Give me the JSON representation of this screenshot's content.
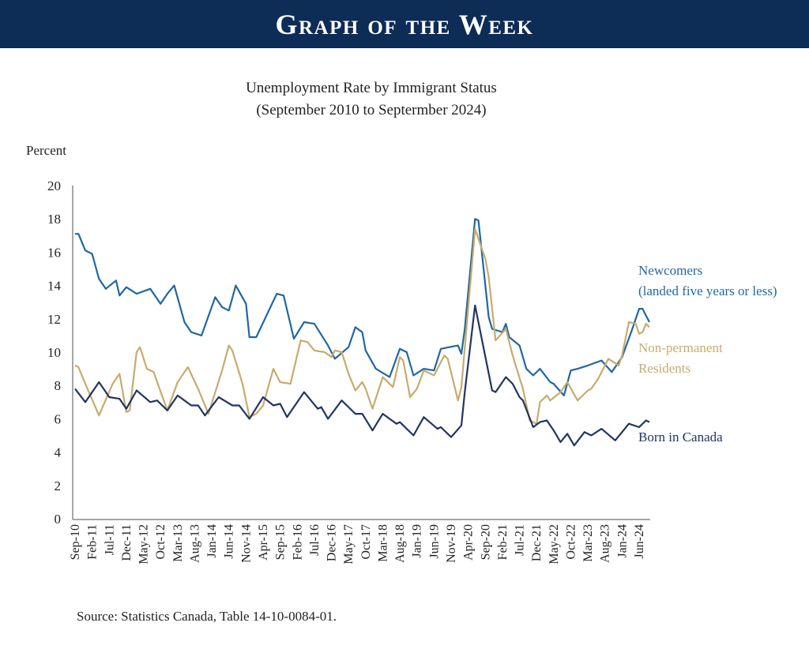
{
  "banner": {
    "title": "Graph of the Week"
  },
  "chart_data": {
    "type": "line",
    "title": "Unemployment Rate by Immigrant Status",
    "subtitle": "(September 2010 to Septermber 2024)",
    "ylabel": "Percent",
    "xlabel": "",
    "ylim": [
      0,
      20
    ],
    "yticks": [
      0,
      2,
      4,
      6,
      8,
      10,
      12,
      14,
      16,
      18,
      20
    ],
    "x_unit": "months since Sep-10",
    "xlim": [
      0,
      168
    ],
    "xtick_step_months": 5,
    "xtick_labels": [
      "Sep-10",
      "Feb-11",
      "Jul-11",
      "Dec-11",
      "May-12",
      "Oct-12",
      "Mar-13",
      "Aug-13",
      "Jan-14",
      "Jun-14",
      "Nov-14",
      "Apr-15",
      "Sep-15",
      "Feb-16",
      "Jul-16",
      "Dec-16",
      "May-17",
      "Oct-17",
      "Mar-18",
      "Aug-18",
      "Jan-19",
      "Jun-19",
      "Nov-19",
      "Apr-20",
      "Sep-20",
      "Feb-21",
      "Jul-21",
      "Dec-21",
      "May-22",
      "Oct-22",
      "Mar-23",
      "Aug-23",
      "Jan-24",
      "Jun-24"
    ],
    "grid": false,
    "series": [
      {
        "name": "Newcomers",
        "label_lines": [
          "Newcomers",
          "(landed five years or less)"
        ],
        "color": "#1f67a3",
        "points": [
          [
            0,
            17.1
          ],
          [
            1,
            17.1
          ],
          [
            3,
            16.1
          ],
          [
            5,
            15.9
          ],
          [
            7,
            14.4
          ],
          [
            9,
            13.8
          ],
          [
            12,
            14.3
          ],
          [
            13,
            13.4
          ],
          [
            15,
            13.9
          ],
          [
            18,
            13.5
          ],
          [
            22,
            13.8
          ],
          [
            25,
            12.9
          ],
          [
            27,
            13.5
          ],
          [
            29,
            14.0
          ],
          [
            32,
            11.8
          ],
          [
            34,
            11.2
          ],
          [
            37,
            11.0
          ],
          [
            41,
            13.3
          ],
          [
            43,
            12.7
          ],
          [
            45,
            12.5
          ],
          [
            47,
            14.0
          ],
          [
            50,
            12.9
          ],
          [
            51,
            10.9
          ],
          [
            53,
            10.9
          ],
          [
            56,
            12.2
          ],
          [
            59,
            13.5
          ],
          [
            61,
            13.4
          ],
          [
            64,
            10.8
          ],
          [
            67,
            11.8
          ],
          [
            70,
            11.7
          ],
          [
            74,
            10.4
          ],
          [
            76,
            9.6
          ],
          [
            80,
            10.3
          ],
          [
            82,
            11.5
          ],
          [
            84,
            11.2
          ],
          [
            85,
            10.1
          ],
          [
            88,
            9.0
          ],
          [
            92,
            8.5
          ],
          [
            95,
            10.2
          ],
          [
            97,
            10.0
          ],
          [
            99,
            8.6
          ],
          [
            102,
            9.0
          ],
          [
            105,
            8.9
          ],
          [
            107,
            10.2
          ],
          [
            112,
            10.4
          ],
          [
            113,
            9.9
          ],
          [
            114,
            11.4
          ],
          [
            117,
            18.0
          ],
          [
            118,
            17.9
          ],
          [
            121,
            12.1
          ],
          [
            122,
            11.4
          ],
          [
            125,
            11.2
          ],
          [
            126,
            11.7
          ],
          [
            127,
            10.9
          ],
          [
            130,
            10.4
          ],
          [
            132,
            9.0
          ],
          [
            134,
            8.6
          ],
          [
            136,
            9.0
          ],
          [
            139,
            8.2
          ],
          [
            140,
            8.1
          ],
          [
            143,
            7.4
          ],
          [
            145,
            8.9
          ],
          [
            147,
            9.0
          ],
          [
            150,
            9.2
          ],
          [
            154,
            9.5
          ],
          [
            157,
            8.8
          ],
          [
            160,
            9.7
          ],
          [
            163,
            11.4
          ],
          [
            165,
            12.6
          ],
          [
            166,
            12.6
          ],
          [
            168,
            11.8
          ]
        ]
      },
      {
        "name": "Non-permanent Residents",
        "label_lines": [
          "Non-permanent",
          "Residents"
        ],
        "color": "#c8ab6c",
        "points": [
          [
            0,
            9.2
          ],
          [
            1,
            9.1
          ],
          [
            3,
            8.1
          ],
          [
            7,
            6.2
          ],
          [
            11,
            8.1
          ],
          [
            13,
            8.7
          ],
          [
            15,
            6.4
          ],
          [
            16,
            6.5
          ],
          [
            18,
            10.0
          ],
          [
            19,
            10.3
          ],
          [
            21,
            9.0
          ],
          [
            23,
            8.8
          ],
          [
            27,
            6.5
          ],
          [
            30,
            8.2
          ],
          [
            33,
            9.1
          ],
          [
            36,
            7.8
          ],
          [
            39,
            6.3
          ],
          [
            43,
            8.9
          ],
          [
            45,
            10.4
          ],
          [
            46,
            10.1
          ],
          [
            49,
            8.1
          ],
          [
            51,
            6.1
          ],
          [
            53,
            6.3
          ],
          [
            55,
            6.8
          ],
          [
            58,
            9.0
          ],
          [
            60,
            8.2
          ],
          [
            63,
            8.1
          ],
          [
            66,
            10.7
          ],
          [
            68,
            10.6
          ],
          [
            70,
            10.1
          ],
          [
            73,
            10.0
          ],
          [
            75,
            9.7
          ],
          [
            76,
            10.1
          ],
          [
            78,
            10.0
          ],
          [
            80,
            8.7
          ],
          [
            82,
            7.7
          ],
          [
            84,
            8.2
          ],
          [
            85,
            7.8
          ],
          [
            87,
            6.6
          ],
          [
            90,
            8.5
          ],
          [
            93,
            7.9
          ],
          [
            95,
            9.7
          ],
          [
            96,
            9.5
          ],
          [
            98,
            7.3
          ],
          [
            100,
            7.8
          ],
          [
            102,
            8.9
          ],
          [
            105,
            8.6
          ],
          [
            108,
            9.8
          ],
          [
            109,
            9.6
          ],
          [
            112,
            7.1
          ],
          [
            113,
            7.9
          ],
          [
            117,
            17.4
          ],
          [
            120,
            15.6
          ],
          [
            121,
            14.5
          ],
          [
            123,
            10.7
          ],
          [
            126,
            11.4
          ],
          [
            128,
            9.8
          ],
          [
            131,
            7.8
          ],
          [
            133,
            5.9
          ],
          [
            135,
            5.7
          ],
          [
            136,
            7.0
          ],
          [
            138,
            7.4
          ],
          [
            139,
            7.1
          ],
          [
            142,
            7.6
          ],
          [
            144,
            8.2
          ],
          [
            147,
            7.1
          ],
          [
            150,
            7.7
          ],
          [
            151,
            7.8
          ],
          [
            153,
            8.4
          ],
          [
            156,
            9.6
          ],
          [
            159,
            9.2
          ],
          [
            160,
            9.8
          ],
          [
            162,
            11.8
          ],
          [
            164,
            11.7
          ],
          [
            165,
            11.1
          ],
          [
            166,
            11.2
          ],
          [
            167,
            11.7
          ],
          [
            168,
            11.5
          ]
        ]
      },
      {
        "name": "Born in Canada",
        "label_lines": [
          "Born in Canada"
        ],
        "color": "#1f3563",
        "points": [
          [
            0,
            7.8
          ],
          [
            3,
            7.0
          ],
          [
            7,
            8.2
          ],
          [
            10,
            7.3
          ],
          [
            13,
            7.2
          ],
          [
            15,
            6.6
          ],
          [
            18,
            7.7
          ],
          [
            22,
            7.0
          ],
          [
            24,
            7.1
          ],
          [
            27,
            6.5
          ],
          [
            30,
            7.4
          ],
          [
            34,
            6.8
          ],
          [
            36,
            6.8
          ],
          [
            38,
            6.2
          ],
          [
            42,
            7.3
          ],
          [
            46,
            6.8
          ],
          [
            48,
            6.8
          ],
          [
            51,
            6.0
          ],
          [
            55,
            7.3
          ],
          [
            58,
            6.8
          ],
          [
            60,
            6.9
          ],
          [
            62,
            6.1
          ],
          [
            67,
            7.6
          ],
          [
            71,
            6.6
          ],
          [
            72,
            6.7
          ],
          [
            74,
            6.0
          ],
          [
            78,
            7.1
          ],
          [
            82,
            6.3
          ],
          [
            84,
            6.3
          ],
          [
            87,
            5.3
          ],
          [
            90,
            6.3
          ],
          [
            94,
            5.7
          ],
          [
            95,
            5.8
          ],
          [
            99,
            5.0
          ],
          [
            102,
            6.1
          ],
          [
            106,
            5.4
          ],
          [
            107,
            5.5
          ],
          [
            110,
            4.9
          ],
          [
            113,
            5.6
          ],
          [
            114,
            7.6
          ],
          [
            117,
            12.8
          ],
          [
            122,
            7.7
          ],
          [
            123,
            7.6
          ],
          [
            126,
            8.5
          ],
          [
            128,
            8.1
          ],
          [
            130,
            7.3
          ],
          [
            131,
            7.1
          ],
          [
            134,
            5.5
          ],
          [
            136,
            5.8
          ],
          [
            138,
            5.9
          ],
          [
            140,
            5.3
          ],
          [
            142,
            4.6
          ],
          [
            144,
            5.1
          ],
          [
            146,
            4.4
          ],
          [
            149,
            5.2
          ],
          [
            151,
            5.0
          ],
          [
            154,
            5.4
          ],
          [
            158,
            4.7
          ],
          [
            162,
            5.7
          ],
          [
            165,
            5.5
          ],
          [
            167,
            5.9
          ],
          [
            168,
            5.8
          ]
        ]
      }
    ],
    "source": "Source: Statistics Canada, Table 14-10-0084-01."
  }
}
